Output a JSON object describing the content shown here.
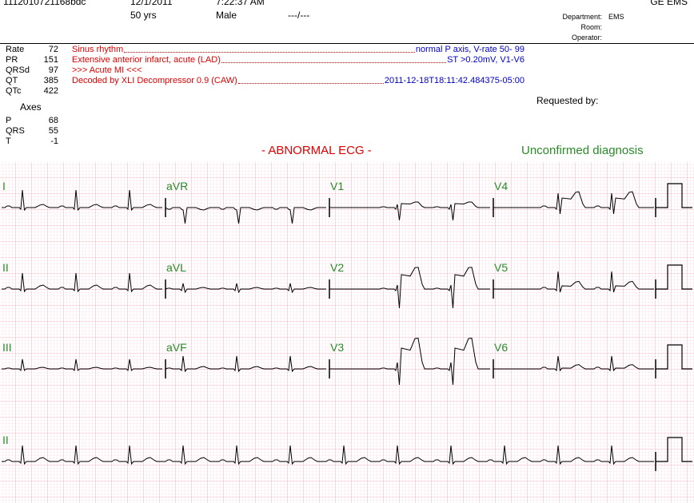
{
  "header": {
    "id": "1112010721168bdc",
    "date": "12/1/2011",
    "time": "7:22:37 AM",
    "age": "50 yrs",
    "sex": "Male",
    "height_weight": "---/---",
    "system": "GE EMS",
    "department_label": "Department:",
    "department": "EMS",
    "room_label": "Room:",
    "operator_label": "Operator:"
  },
  "measurements": [
    {
      "label": "Rate",
      "value": 72
    },
    {
      "label": "PR",
      "value": 151
    },
    {
      "label": "QRSd",
      "value": 97
    },
    {
      "label": "QT",
      "value": 385
    },
    {
      "label": "QTc",
      "value": 422
    }
  ],
  "axes": {
    "title": "Axes",
    "items": [
      {
        "label": "P",
        "value": 68
      },
      {
        "label": "QRS",
        "value": 55
      },
      {
        "label": "T",
        "value": -1
      }
    ]
  },
  "interpretation": [
    {
      "text": "Sinus rhythm",
      "detail": "normal P axis, V-rate 50- 99"
    },
    {
      "text": "Extensive anterior infarct, acute (LAD)",
      "detail": "ST >0.20mV, V1-V6"
    },
    {
      "text": ">>> Acute MI <<<"
    },
    {
      "text": "Decoded by XLI Decompressor 0.9 (CAW)",
      "detail": "2011-12-18T18:11:42.484375-05:00"
    }
  ],
  "requested_by": "Requested by:",
  "status": "- ABNORMAL ECG -",
  "confirmation": "Unconfirmed diagnosis",
  "leads": [
    [
      "I",
      "aVR",
      "V1",
      "V4"
    ],
    [
      "II",
      "aVL",
      "V2",
      "V5"
    ],
    [
      "III",
      "aVF",
      "V3",
      "V6"
    ]
  ],
  "rhythm_lead": "II"
}
